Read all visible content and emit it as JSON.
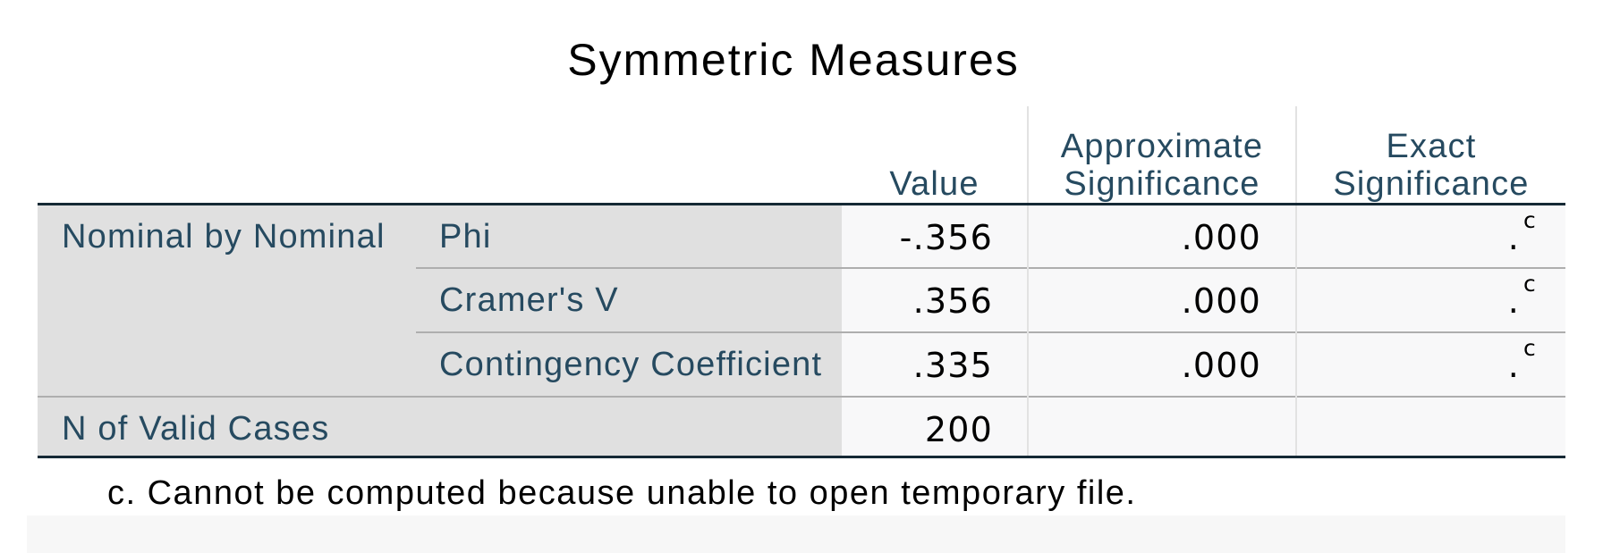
{
  "title": "Symmetric Measures",
  "columns": {
    "value": "Value",
    "approx_sig_line1": "Approximate",
    "approx_sig_line2": "Significance",
    "exact_sig_line1": "Exact",
    "exact_sig_line2": "Significance"
  },
  "groups": {
    "nominal": "Nominal by Nominal",
    "valid_cases": "N of Valid Cases"
  },
  "rows": [
    {
      "label": "Phi",
      "value": "-.356",
      "approx_sig": ".000",
      "exact_sig": ".",
      "exact_note": "c"
    },
    {
      "label": "Cramer's V",
      "value": ".356",
      "approx_sig": ".000",
      "exact_sig": ".",
      "exact_note": "c"
    },
    {
      "label": "Contingency Coefficient",
      "value": ".335",
      "approx_sig": ".000",
      "exact_sig": ".",
      "exact_note": "c"
    }
  ],
  "valid_cases": {
    "value": "200"
  },
  "footnote": "c. Cannot be computed because unable to open temporary file."
}
